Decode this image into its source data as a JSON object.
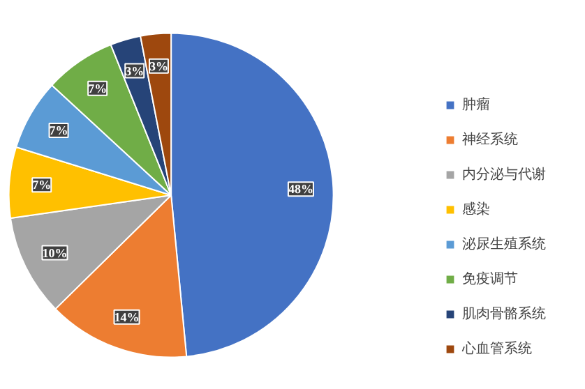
{
  "chart_data": {
    "type": "pie",
    "categories": [
      "肿瘤",
      "神经系统",
      "内分泌与代谢",
      "感染",
      "泌尿生殖系统",
      "免疫调节",
      "肌肉骨骼系统",
      "心血管系统"
    ],
    "values": [
      48,
      14,
      10,
      7,
      7,
      7,
      3,
      3
    ],
    "colors": [
      "#4472c4",
      "#ed7d31",
      "#a5a5a5",
      "#ffc000",
      "#5b9bd5",
      "#70ad47",
      "#264478",
      "#9e480e"
    ],
    "value_labels": [
      "48%",
      "14%",
      "10%",
      "7%",
      "7%",
      "7%",
      "3%",
      "3%"
    ],
    "legend": "right"
  }
}
